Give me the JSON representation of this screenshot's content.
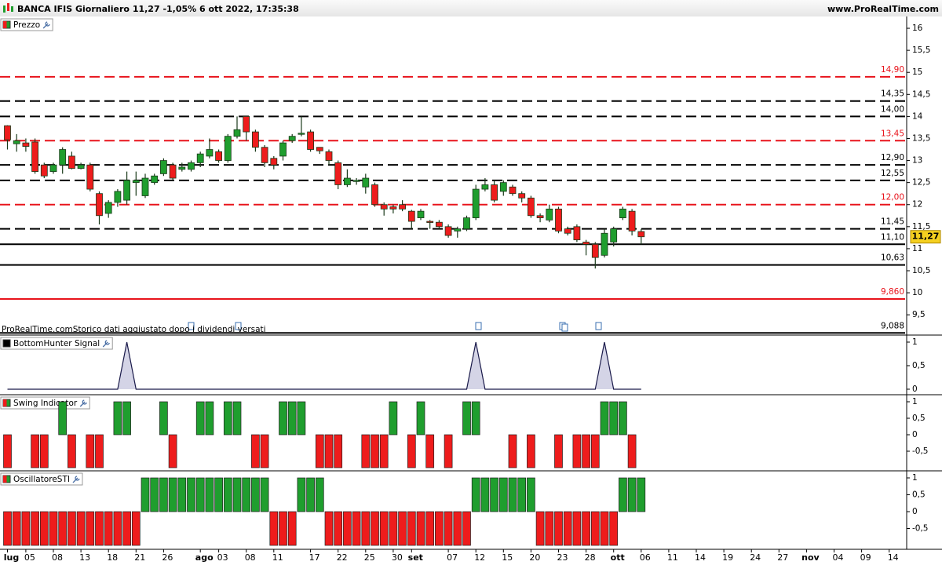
{
  "chart_data": {
    "title": "BANCA IFIS Giornaliero 11,27 -1,05% 6 ott 2022, 17:35:38",
    "source": "www.ProRealTime.com",
    "categories": [
      "lug",
      null,
      "05",
      null,
      null,
      "08",
      null,
      null,
      "13",
      null,
      null,
      "18",
      null,
      null,
      "21",
      null,
      null,
      "26",
      null,
      null,
      null,
      "ago",
      null,
      "03",
      null,
      null,
      "08",
      null,
      null,
      "11",
      null,
      null,
      null,
      "17",
      null,
      null,
      "22",
      null,
      null,
      "25",
      null,
      null,
      "30",
      null,
      "set",
      null,
      null,
      null,
      "07",
      null,
      null,
      "12",
      null,
      null,
      "15",
      null,
      null,
      "20",
      null,
      null,
      "23",
      null,
      null,
      "28",
      null,
      null,
      "ott",
      null,
      null,
      "06",
      null,
      null,
      "11",
      null,
      null,
      "14",
      null,
      null,
      "19",
      null,
      null,
      "24",
      null,
      null,
      "27",
      null,
      null,
      "nov",
      null,
      null,
      "04",
      null,
      null,
      "09",
      null,
      null,
      "14"
    ],
    "panels": [
      {
        "type": "candlestick",
        "name": "Prezzo",
        "note": "ProRealTime.comStorico dati aggiustato dopo i dividendi versati",
        "ylim": [
          9.04,
          16.25
        ],
        "yticks": [
          16,
          {
            "value": 15.5,
            "label": "15,5"
          },
          15,
          {
            "value": 14.5,
            "label": "14,5"
          },
          14,
          {
            "value": 13.5,
            "label": "13,5"
          },
          13,
          {
            "value": 12.5,
            "label": "12,5"
          },
          12,
          {
            "value": 11.5,
            "label": "11,5"
          },
          11,
          {
            "value": 10.5,
            "label": "10,5"
          },
          10,
          {
            "value": 9.5,
            "label": "9,5"
          }
        ],
        "colors": {
          "up": "#1f9e2e",
          "down": "#ee1c1c"
        },
        "open": [
          13.79,
          13.38,
          13.4,
          13.42,
          12.9,
          12.75,
          12.9,
          13.1,
          12.82,
          12.9,
          12.25,
          11.8,
          12.05,
          12.1,
          12.5,
          12.2,
          12.5,
          12.7,
          12.9,
          12.8,
          12.8,
          12.95,
          13.1,
          13.2,
          13.0,
          13.55,
          14.0,
          13.65,
          13.3,
          13.05,
          13.1,
          13.45,
          13.6,
          13.65,
          13.3,
          13.2,
          12.95,
          12.45,
          12.55,
          12.4,
          12.45,
          12.0,
          11.95,
          12.0,
          11.85,
          11.7,
          11.62,
          11.6,
          11.5,
          11.4,
          11.45,
          11.7,
          12.35,
          12.45,
          12.3,
          12.4,
          12.25,
          12.15,
          11.75,
          11.65,
          11.9,
          11.45,
          11.5,
          11.15,
          11.1,
          10.85,
          11.15,
          11.7,
          11.85,
          11.39
        ],
        "high": [
          13.8,
          13.6,
          13.5,
          13.5,
          12.95,
          12.95,
          13.3,
          13.2,
          12.95,
          12.95,
          12.3,
          12.1,
          12.35,
          12.75,
          12.75,
          12.7,
          12.7,
          13.05,
          12.95,
          12.95,
          13.0,
          13.2,
          13.5,
          13.25,
          13.6,
          14.0,
          14.0,
          13.7,
          13.35,
          13.1,
          13.45,
          13.6,
          14.0,
          13.7,
          13.3,
          13.25,
          13.0,
          12.8,
          12.6,
          12.7,
          12.5,
          12.05,
          12.0,
          12.1,
          11.88,
          11.9,
          11.65,
          11.65,
          11.55,
          11.5,
          11.75,
          12.45,
          12.6,
          12.55,
          12.55,
          12.45,
          12.3,
          12.2,
          11.8,
          12.0,
          11.95,
          11.5,
          11.55,
          11.2,
          11.15,
          11.45,
          11.5,
          11.95,
          11.9,
          11.45
        ],
        "low": [
          13.25,
          13.2,
          13.2,
          12.7,
          12.6,
          12.7,
          12.7,
          12.8,
          12.8,
          12.3,
          11.55,
          11.7,
          11.95,
          12.0,
          12.2,
          12.15,
          12.45,
          12.65,
          12.55,
          12.75,
          12.75,
          12.85,
          13.05,
          12.95,
          12.95,
          13.5,
          13.45,
          13.2,
          12.85,
          12.8,
          13.0,
          13.4,
          13.55,
          13.2,
          13.15,
          12.9,
          12.35,
          12.4,
          12.45,
          12.25,
          11.95,
          11.75,
          11.8,
          11.85,
          11.45,
          11.65,
          11.45,
          11.45,
          11.25,
          11.25,
          11.4,
          11.65,
          12.3,
          12.05,
          12.2,
          12.2,
          12.05,
          11.7,
          11.6,
          11.6,
          11.35,
          11.3,
          11.15,
          10.85,
          10.55,
          10.8,
          11.05,
          11.65,
          11.3,
          11.1
        ],
        "close": [
          13.47,
          13.45,
          13.32,
          12.75,
          12.65,
          12.9,
          13.25,
          12.82,
          12.9,
          12.35,
          11.75,
          12.05,
          12.3,
          12.55,
          12.55,
          12.6,
          12.65,
          13.0,
          12.6,
          12.85,
          12.95,
          13.15,
          13.25,
          13.0,
          13.55,
          13.7,
          13.65,
          13.3,
          12.95,
          12.9,
          13.4,
          13.55,
          13.62,
          13.25,
          13.22,
          13.0,
          12.45,
          12.6,
          12.55,
          12.6,
          12.0,
          11.9,
          11.9,
          11.9,
          11.62,
          11.85,
          11.6,
          11.5,
          11.3,
          11.45,
          11.7,
          12.35,
          12.45,
          12.1,
          12.5,
          12.25,
          12.15,
          11.75,
          11.7,
          11.9,
          11.4,
          11.35,
          11.2,
          11.1,
          10.8,
          11.35,
          11.45,
          11.9,
          11.4,
          11.27
        ],
        "last": {
          "value": 11.27,
          "label": "11,27"
        },
        "levels": [
          {
            "value": 14.9,
            "label": "14,90",
            "color": "#e8141c",
            "style": "dashed"
          },
          {
            "value": 14.35,
            "label": "14,35",
            "color": "#000000",
            "style": "dashed"
          },
          {
            "value": 14.0,
            "label": "14,00",
            "color": "#000000",
            "style": "dashed"
          },
          {
            "value": 13.45,
            "label": "13,45",
            "color": "#e8141c",
            "style": "dashed"
          },
          {
            "value": 12.9,
            "label": "12,90",
            "color": "#000000",
            "style": "dashed"
          },
          {
            "value": 12.55,
            "label": "12,55",
            "color": "#000000",
            "style": "dashed"
          },
          {
            "value": 12.0,
            "label": "12,00",
            "color": "#e8141c",
            "style": "dashed"
          },
          {
            "value": 11.45,
            "label": "11,45",
            "color": "#000000",
            "style": "dashed"
          },
          {
            "value": 11.1,
            "label": "11,10",
            "color": "#000000",
            "style": "solid"
          },
          {
            "value": 10.63,
            "label": "10,63",
            "color": "#000000",
            "style": "solid"
          },
          {
            "value": 9.86,
            "label": "9,860",
            "color": "#e8141c",
            "style": "solid"
          },
          {
            "value": 9.088,
            "label": "9,088",
            "color": "#000000",
            "style": "solid"
          }
        ]
      },
      {
        "type": "area",
        "name": "BottomHunter Signal",
        "ylim": [
          -0.117,
          1.133
        ],
        "yticks": [
          1,
          {
            "value": 0.5,
            "label": "0,5"
          },
          0
        ],
        "color": "#1a1a4a",
        "fill": "#d4d4e6",
        "values": [
          0,
          0,
          0,
          0,
          0,
          0,
          0,
          0,
          0,
          0,
          0,
          0,
          0,
          1,
          0,
          0,
          0,
          0,
          0,
          0,
          0,
          0,
          0,
          0,
          0,
          0,
          0,
          0,
          0,
          0,
          0,
          0,
          0,
          0,
          0,
          0,
          0,
          0,
          0,
          0,
          0,
          0,
          0,
          0,
          0,
          0,
          0,
          0,
          0,
          0,
          0,
          1,
          0,
          0,
          0,
          0,
          0,
          0,
          0,
          0,
          0,
          0,
          0,
          0,
          0,
          1,
          0,
          0,
          0,
          0
        ]
      },
      {
        "type": "bar",
        "name": "Swing Indicator",
        "ylim": [
          -1.095,
          1.19
        ],
        "yticks": [
          1,
          {
            "value": 0.5,
            "label": "0,5"
          },
          0,
          {
            "value": -0.5,
            "label": "-0,5"
          }
        ],
        "colors": {
          "up": "#1f9e2e",
          "down": "#ee1c1c"
        },
        "values": [
          -1,
          0,
          0,
          -1,
          -1,
          0,
          1,
          -1,
          0,
          -1,
          -1,
          0,
          1,
          1,
          0,
          0,
          0,
          1,
          -1,
          0,
          0,
          1,
          1,
          0,
          1,
          1,
          0,
          -1,
          -1,
          0,
          1,
          1,
          1,
          0,
          -1,
          -1,
          -1,
          0,
          0,
          -1,
          -1,
          -1,
          1,
          0,
          -1,
          1,
          -1,
          0,
          -1,
          0,
          1,
          1,
          0,
          0,
          0,
          -1,
          0,
          -1,
          0,
          0,
          -1,
          0,
          -1,
          -1,
          -1,
          1,
          1,
          1,
          -1,
          0
        ]
      },
      {
        "type": "bar",
        "name": "OscillatoreSTI",
        "ylim": [
          -1.116,
          1.186
        ],
        "yticks": [
          1,
          {
            "value": 0.5,
            "label": "0,5"
          },
          0,
          {
            "value": -0.5,
            "label": "-0,5"
          }
        ],
        "colors": {
          "up": "#1f9e2e",
          "down": "#ee1c1c"
        },
        "values": [
          -1,
          -1,
          -1,
          -1,
          -1,
          -1,
          -1,
          -1,
          -1,
          -1,
          -1,
          -1,
          -1,
          -1,
          -1,
          1,
          1,
          1,
          1,
          1,
          1,
          1,
          1,
          1,
          1,
          1,
          1,
          1,
          1,
          -1,
          -1,
          -1,
          1,
          1,
          1,
          -1,
          -1,
          -1,
          -1,
          -1,
          -1,
          -1,
          -1,
          -1,
          -1,
          -1,
          -1,
          -1,
          -1,
          -1,
          -1,
          1,
          1,
          1,
          1,
          1,
          1,
          1,
          -1,
          -1,
          -1,
          -1,
          -1,
          -1,
          -1,
          -1,
          -1,
          1,
          1,
          1
        ]
      }
    ]
  }
}
